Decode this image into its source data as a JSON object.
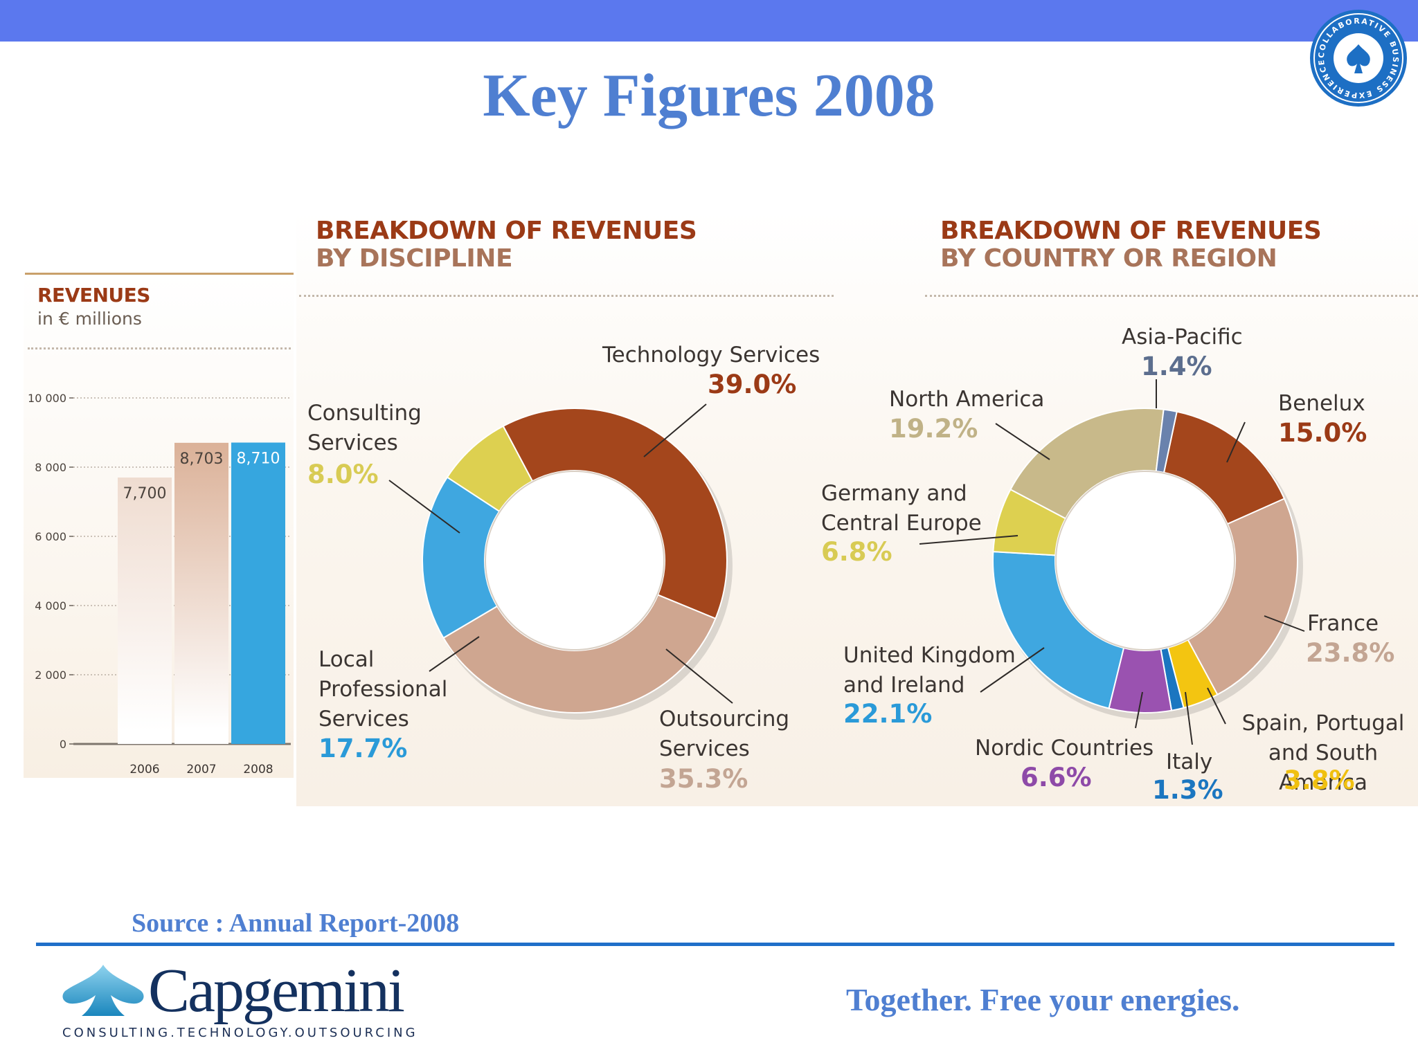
{
  "slide": {
    "title": "Key Figures 2008",
    "source": "Source : Annual Report-2008",
    "slogan": "Together. Free your energies.",
    "logo_name": "Capgemini",
    "logo_tagline": "CONSULTING.TECHNOLOGY.OUTSOURCING",
    "seal_text": "COLLABORATIVE BUSINESS EXPERIENCE",
    "colors": {
      "top_bar": "#5b78ee",
      "title": "#4f7fd1",
      "heading": "#9b3a16"
    }
  },
  "chart_data": [
    {
      "type": "bar",
      "title": "REVENUES",
      "subtitle": "in € millions",
      "categories": [
        "2006",
        "2007",
        "2008"
      ],
      "values": [
        7700,
        8703,
        8710
      ],
      "data_labels": [
        "7,700",
        "8,703",
        "8,710"
      ],
      "bar_colors": [
        "#efdcd0",
        "#dbb198",
        "#36a6df"
      ],
      "ylim": [
        0,
        10000
      ],
      "yticks": [
        0,
        2000,
        4000,
        6000,
        8000,
        10000
      ],
      "ytick_labels": [
        "0",
        "2 000",
        "4 000",
        "6 000",
        "8 000",
        "10 000"
      ],
      "grid": true
    },
    {
      "type": "pie",
      "title": "BREAKDOWN OF REVENUES",
      "subtitle": "BY DISCIPLINE",
      "slices": [
        {
          "label": "Technology Services",
          "value": 39.0,
          "display": "39.0%",
          "color": "#a4461c"
        },
        {
          "label": "Outsourcing Services",
          "value": 35.3,
          "display": "35.3%",
          "color": "#cfa690"
        },
        {
          "label": "Local Professional Services",
          "value": 17.7,
          "display": "17.7%",
          "color": "#3fa7e0"
        },
        {
          "label": "Consulting Services",
          "value": 8.0,
          "display": "8.0%",
          "color": "#ddd050"
        }
      ]
    },
    {
      "type": "pie",
      "title": "BREAKDOWN OF REVENUES",
      "subtitle": "BY COUNTRY OR REGION",
      "slices": [
        {
          "label": "Benelux",
          "value": 15.0,
          "display": "15.0%",
          "color": "#a4461c"
        },
        {
          "label": "France",
          "value": 23.8,
          "display": "23.8%",
          "color": "#cfa690"
        },
        {
          "label": "Spain, Portugal and South America",
          "value": 3.8,
          "display": "3.8%",
          "color": "#f3c511"
        },
        {
          "label": "Italy",
          "value": 1.3,
          "display": "1.3%",
          "color": "#1b76c0"
        },
        {
          "label": "Nordic Countries",
          "value": 6.6,
          "display": "6.6%",
          "color": "#9a52b0"
        },
        {
          "label": "United Kingdom and Ireland",
          "value": 22.1,
          "display": "22.1%",
          "color": "#3fa7e0"
        },
        {
          "label": "Germany and Central Europe",
          "value": 6.8,
          "display": "6.8%",
          "color": "#ddd050"
        },
        {
          "label": "North America",
          "value": 19.2,
          "display": "19.2%",
          "color": "#c8b98a"
        },
        {
          "label": "Asia-Pacific",
          "value": 1.4,
          "display": "1.4%",
          "color": "#6a82ad"
        }
      ]
    }
  ],
  "labels": {
    "discipline": {
      "tech_name": "Technology Services",
      "cons_name_1": "Consulting",
      "cons_name_2": "Services",
      "local_name_1": "Local",
      "local_name_2": "Professional",
      "local_name_3": "Services",
      "out_name_1": "Outsourcing",
      "out_name_2": "Services"
    },
    "region": {
      "asia_name": "Asia-Pacific",
      "na_name": "North America",
      "benelux_name": "Benelux",
      "germany_name_1": "Germany and",
      "germany_name_2": "Central Europe",
      "france_name": "France",
      "uk_name_1": "United Kingdom",
      "uk_name_2": "and Ireland",
      "nordic_name": "Nordic Countries",
      "italy_name": "Italy",
      "spain_name_1": "Spain, Portugal",
      "spain_name_2": "and South America"
    }
  }
}
